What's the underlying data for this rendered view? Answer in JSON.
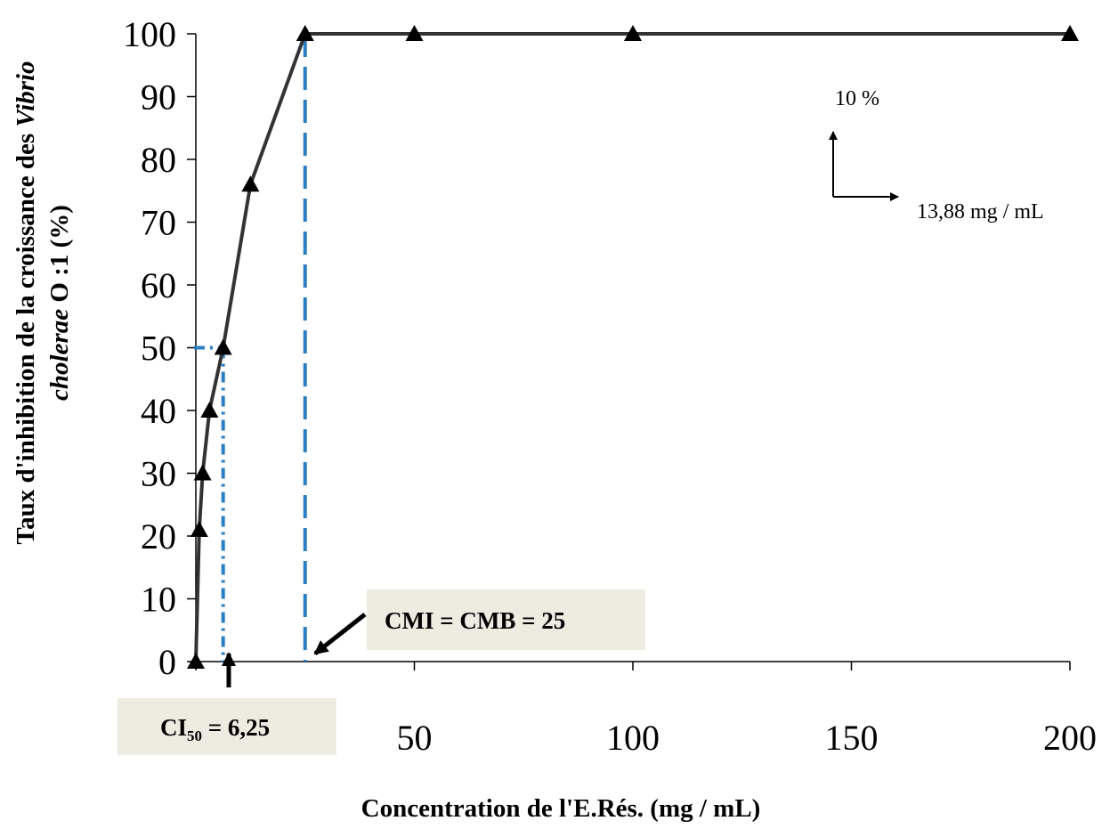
{
  "chart_data": {
    "type": "line",
    "title": "",
    "xlabel": "Concentration de l'E.Rés.  (mg / mL)",
    "ylabel": {
      "line1": "Taux d'inhibition de la croissance des ",
      "line1_italic": "Vibrio",
      "line2_italic": "cholerae",
      "line2": " O :1   (%)"
    },
    "xlim": [
      0,
      200
    ],
    "ylim": [
      0,
      100
    ],
    "x_ticks": [
      0,
      50,
      100,
      150,
      200
    ],
    "x_tick_labels": [
      "50",
      "100",
      "150",
      "200"
    ],
    "y_ticks": [
      0,
      10,
      20,
      30,
      40,
      50,
      60,
      70,
      80,
      90,
      100
    ],
    "grid": false,
    "legend": "none",
    "series": [
      {
        "x": [
          0,
          0.78,
          1.56,
          3.125,
          6.25,
          12.5,
          25,
          50,
          100,
          200
        ],
        "y": [
          0,
          21,
          30,
          40,
          50,
          76,
          100,
          100,
          100,
          100
        ],
        "color": "#333333",
        "marker": "triangle"
      }
    ],
    "reference_lines": [
      {
        "kind": "ic50",
        "x": 6.25,
        "y": 50,
        "color": "#2a7fc4"
      },
      {
        "kind": "mic",
        "x": 25,
        "color": "#2a7fc4"
      }
    ],
    "annotations": {
      "ic50_box": {
        "main": "CI",
        "sub": "50",
        "rest": " = 6,25"
      },
      "mic_box": "CMI = CMB = 25",
      "scale_y": "10 %",
      "scale_x": "13,88 mg / mL"
    },
    "box_color": "#eeece1"
  }
}
